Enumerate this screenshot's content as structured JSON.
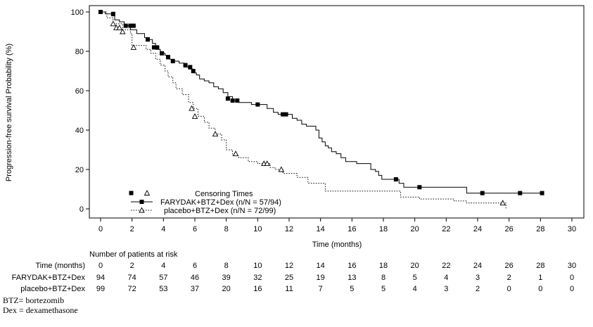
{
  "chart_data": {
    "type": "line",
    "subtype": "kaplan-meier",
    "xlabel": "Time (months)",
    "ylabel": "Progression-free survival Probability (%)",
    "xlim": [
      0,
      30
    ],
    "ylim": [
      0,
      100
    ],
    "x_ticks": [
      0,
      2,
      4,
      6,
      8,
      10,
      12,
      14,
      16,
      18,
      20,
      22,
      24,
      26,
      28,
      30
    ],
    "y_ticks": [
      0,
      20,
      40,
      60,
      80,
      100
    ],
    "grid": false,
    "legend": {
      "placement": "bottom-left",
      "title": "Censoring Times",
      "entries": [
        "FARYDAK+BTZ+Dex (n/N = 57/94)",
        "placebo+BTZ+Dex (n/N = 72/99)"
      ]
    },
    "series": [
      {
        "name": "FARYDAK+BTZ+Dex (n/N = 57/94)",
        "line_style": "solid",
        "censor_marker": "filled-square",
        "x": [
          0,
          0.3,
          0.3,
          0.7,
          0.7,
          0.9,
          0.9,
          1.2,
          1.2,
          1.5,
          1.5,
          1.9,
          1.9,
          2.3,
          2.3,
          2.8,
          2.8,
          3.1,
          3.1,
          3.3,
          3.3,
          3.5,
          3.5,
          3.8,
          3.8,
          4.1,
          4.1,
          4.4,
          4.4,
          4.7,
          4.7,
          5.0,
          5.0,
          5.3,
          5.3,
          5.6,
          5.6,
          5.9,
          5.9,
          6.1,
          6.1,
          6.3,
          6.3,
          6.6,
          6.6,
          6.9,
          6.9,
          7.2,
          7.2,
          7.5,
          7.5,
          7.8,
          7.8,
          8.1,
          8.1,
          8.4,
          8.4,
          8.8,
          8.8,
          9.2,
          9.2,
          9.6,
          9.6,
          10.3,
          10.3,
          10.6,
          10.6,
          11.0,
          11.0,
          11.3,
          11.3,
          12.2,
          12.2,
          12.5,
          12.5,
          12.8,
          12.8,
          13.1,
          13.1,
          13.4,
          13.4,
          13.7,
          13.7,
          13.9,
          13.9,
          14.1,
          14.1,
          14.3,
          14.3,
          14.5,
          14.5,
          14.7,
          14.7,
          15.0,
          15.0,
          15.3,
          15.3,
          15.6,
          15.6,
          16.3,
          16.3,
          17.2,
          17.2,
          17.5,
          17.5,
          17.7,
          17.7,
          17.9,
          17.9,
          18.8,
          18.8,
          19.0,
          19.0,
          19.3,
          19.3,
          20.1,
          20.1,
          23.3,
          23.3,
          28.1
        ],
        "y": [
          100,
          100,
          99,
          99,
          98,
          98,
          96,
          96,
          95,
          95,
          93,
          93,
          91,
          91,
          89,
          89,
          87,
          87,
          86,
          86,
          84,
          84,
          81,
          81,
          79,
          79,
          78,
          78,
          76,
          76,
          75,
          75,
          74,
          74,
          72,
          72,
          71,
          71,
          69,
          69,
          68,
          68,
          66,
          66,
          65,
          65,
          64,
          64,
          62,
          62,
          61,
          61,
          59,
          59,
          57,
          57,
          55,
          55,
          54,
          54,
          54,
          54,
          53,
          53,
          53,
          53,
          51,
          51,
          49,
          49,
          48,
          48,
          46,
          46,
          45,
          45,
          43,
          43,
          42,
          42,
          42,
          42,
          40,
          40,
          36,
          36,
          34,
          34,
          32,
          32,
          31,
          31,
          29,
          29,
          28,
          28,
          26,
          26,
          24,
          24,
          23,
          23,
          20,
          20,
          19,
          19,
          17,
          17,
          15,
          15,
          15,
          15,
          13,
          13,
          11,
          11,
          11,
          11,
          8,
          8
        ],
        "censor_x": [
          0.0,
          0.8,
          1.6,
          1.9,
          2.1,
          3.0,
          3.4,
          3.6,
          3.9,
          4.3,
          4.6,
          5.4,
          5.7,
          5.9,
          8.1,
          8.4,
          8.7,
          10.0,
          11.6,
          11.8,
          18.8,
          20.3,
          24.3,
          26.7,
          28.1
        ],
        "censor_y": [
          100,
          99,
          93,
          93,
          93,
          86,
          82,
          82,
          79,
          77,
          75,
          73,
          72,
          70,
          56,
          55,
          55,
          53,
          48,
          48,
          15,
          11,
          8,
          8,
          8
        ]
      },
      {
        "name": "placebo+BTZ+Dex (n/N = 72/99)",
        "line_style": "dotted",
        "censor_marker": "open-triangle",
        "x": [
          0,
          0.4,
          0.4,
          0.8,
          0.8,
          1.4,
          1.4,
          1.9,
          1.9,
          2.0,
          2.0,
          2.9,
          2.9,
          3.2,
          3.2,
          3.5,
          3.5,
          3.8,
          3.8,
          4.1,
          4.1,
          4.3,
          4.3,
          4.6,
          4.6,
          4.8,
          4.8,
          5.2,
          5.2,
          5.6,
          5.6,
          5.9,
          5.9,
          6.2,
          6.2,
          6.6,
          6.6,
          6.9,
          6.9,
          7.3,
          7.3,
          7.7,
          7.7,
          8.0,
          8.0,
          8.4,
          8.4,
          8.8,
          8.8,
          9.4,
          9.4,
          10.0,
          10.0,
          10.8,
          10.8,
          11.1,
          11.1,
          11.6,
          11.6,
          12.5,
          12.5,
          13.2,
          13.2,
          14.3,
          14.3,
          19.1,
          19.1,
          20.3,
          20.3,
          22.5,
          22.5,
          23.3,
          23.3,
          25.8,
          25.8
        ],
        "y": [
          100,
          100,
          97,
          97,
          94,
          94,
          91,
          91,
          89,
          89,
          83,
          83,
          81,
          81,
          79,
          79,
          76,
          76,
          73,
          73,
          70,
          70,
          67,
          67,
          64,
          64,
          61,
          61,
          58,
          58,
          54,
          54,
          51,
          51,
          47,
          47,
          44,
          44,
          41,
          41,
          38,
          38,
          35,
          35,
          30,
          30,
          27,
          27,
          26,
          26,
          24,
          24,
          23,
          23,
          21,
          21,
          20,
          20,
          18,
          18,
          16,
          16,
          13,
          13,
          9,
          9,
          6,
          6,
          5,
          5,
          4,
          4,
          3,
          3,
          0
        ],
        "censor_x": [
          0.8,
          1.0,
          1.2,
          1.4,
          2.1,
          5.8,
          6.0,
          7.3,
          8.6,
          10.4,
          10.6,
          11.5,
          25.6
        ],
        "censor_y": [
          94,
          92,
          92,
          90,
          82,
          51,
          47,
          38,
          28,
          23,
          23,
          20,
          3
        ]
      }
    ],
    "risk_table": {
      "title": "Number of patients at risk",
      "row_header": "Time (months)",
      "times": [
        0,
        2,
        4,
        6,
        8,
        10,
        12,
        14,
        16,
        18,
        20,
        22,
        24,
        26,
        28,
        30
      ],
      "rows": [
        {
          "label": "FARYDAK+BTZ+Dex",
          "counts": [
            94,
            74,
            57,
            46,
            39,
            32,
            25,
            19,
            13,
            8,
            5,
            4,
            3,
            2,
            1,
            0
          ]
        },
        {
          "label": "placebo+BTZ+Dex",
          "counts": [
            99,
            72,
            53,
            37,
            20,
            16,
            11,
            7,
            5,
            5,
            4,
            3,
            2,
            0,
            0,
            0
          ]
        }
      ]
    }
  },
  "footnotes": [
    "BTZ= bortezomib",
    "Dex = dexamethasone"
  ]
}
